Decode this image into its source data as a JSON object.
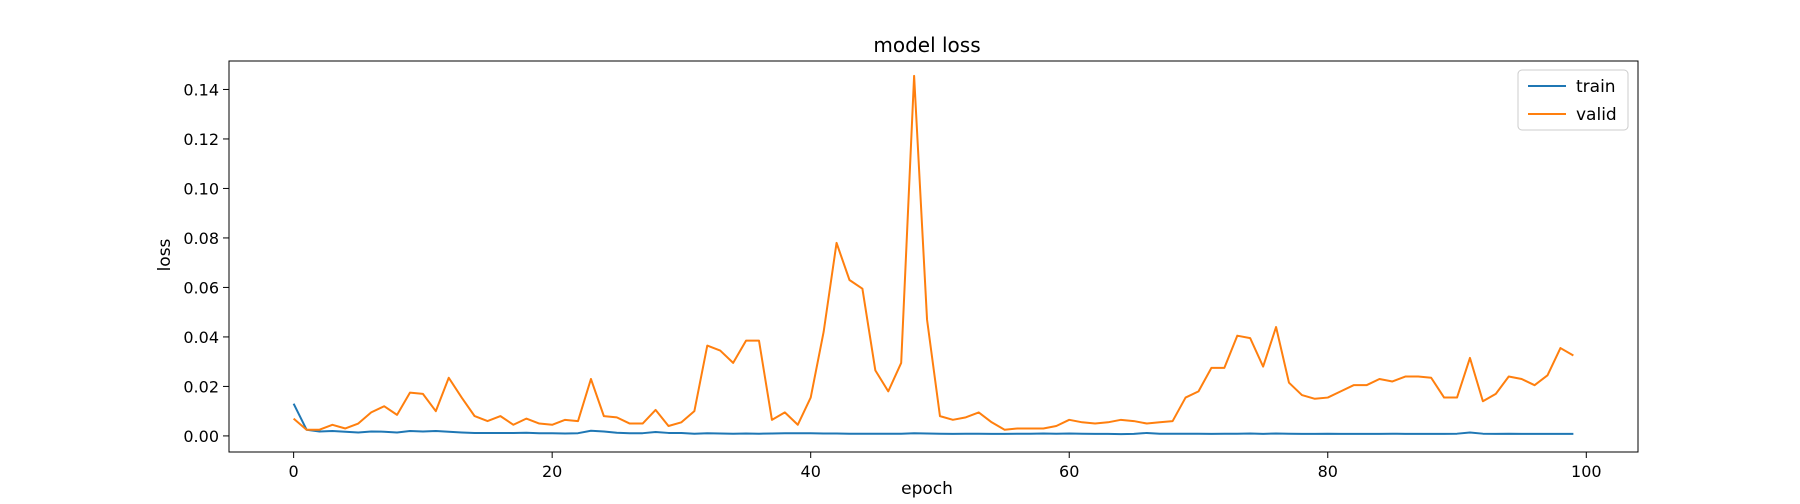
{
  "chart_data": {
    "type": "line",
    "title": "model loss",
    "xlabel": "epoch",
    "ylabel": "loss",
    "xlim": [
      -5,
      104
    ],
    "ylim": [
      -0.0065,
      0.1515
    ],
    "xticks": [
      0,
      20,
      40,
      60,
      80,
      100
    ],
    "xtick_labels": [
      "0",
      "20",
      "40",
      "60",
      "80",
      "100"
    ],
    "yticks": [
      0.0,
      0.02,
      0.04,
      0.06,
      0.08,
      0.1,
      0.12,
      0.14
    ],
    "ytick_labels": [
      "0.00",
      "0.02",
      "0.04",
      "0.06",
      "0.08",
      "0.10",
      "0.12",
      "0.14"
    ],
    "grid": false,
    "legend_position": "top-right",
    "x": [
      0,
      1,
      2,
      3,
      4,
      5,
      6,
      7,
      8,
      9,
      10,
      11,
      12,
      13,
      14,
      15,
      16,
      17,
      18,
      19,
      20,
      21,
      22,
      23,
      24,
      25,
      26,
      27,
      28,
      29,
      30,
      31,
      32,
      33,
      34,
      35,
      36,
      37,
      38,
      39,
      40,
      41,
      42,
      43,
      44,
      45,
      46,
      47,
      48,
      49,
      50,
      51,
      52,
      53,
      54,
      55,
      56,
      57,
      58,
      59,
      60,
      61,
      62,
      63,
      64,
      65,
      66,
      67,
      68,
      69,
      70,
      71,
      72,
      73,
      74,
      75,
      76,
      77,
      78,
      79,
      80,
      81,
      82,
      83,
      84,
      85,
      86,
      87,
      88,
      89,
      90,
      91,
      92,
      93,
      94,
      95,
      96,
      97,
      98,
      99
    ],
    "series": [
      {
        "name": "train",
        "color": "#1f77b4",
        "values": [
          0.013,
          0.0025,
          0.0018,
          0.002,
          0.0017,
          0.0014,
          0.0018,
          0.0017,
          0.0014,
          0.002,
          0.0018,
          0.002,
          0.0017,
          0.0014,
          0.0012,
          0.0012,
          0.0012,
          0.0012,
          0.0013,
          0.0011,
          0.0011,
          0.001,
          0.0011,
          0.0021,
          0.0018,
          0.0013,
          0.0011,
          0.0011,
          0.0016,
          0.0012,
          0.0012,
          0.0009,
          0.0011,
          0.001,
          0.0009,
          0.001,
          0.0009,
          0.001,
          0.0011,
          0.0011,
          0.0011,
          0.001,
          0.001,
          0.0009,
          0.0009,
          0.0009,
          0.0009,
          0.0009,
          0.0011,
          0.001,
          0.0009,
          0.0008,
          0.0009,
          0.0009,
          0.0008,
          0.0008,
          0.0009,
          0.0009,
          0.001,
          0.0009,
          0.001,
          0.0009,
          0.0008,
          0.0008,
          0.0007,
          0.0008,
          0.0012,
          0.0009,
          0.0009,
          0.0009,
          0.0009,
          0.0008,
          0.0009,
          0.0009,
          0.001,
          0.0008,
          0.001,
          0.0009,
          0.0008,
          0.0008,
          0.0009,
          0.0008,
          0.0008,
          0.0008,
          0.0008,
          0.0009,
          0.0008,
          0.0008,
          0.0008,
          0.0008,
          0.0009,
          0.0014,
          0.0009,
          0.0008,
          0.0009,
          0.0008,
          0.0008,
          0.0008,
          0.0008,
          0.0008
        ]
      },
      {
        "name": "valid",
        "color": "#ff7f0e",
        "values": [
          0.007,
          0.0025,
          0.0025,
          0.0045,
          0.003,
          0.005,
          0.0095,
          0.012,
          0.0085,
          0.0175,
          0.017,
          0.01,
          0.0235,
          0.0155,
          0.008,
          0.006,
          0.008,
          0.0045,
          0.007,
          0.005,
          0.0045,
          0.0065,
          0.006,
          0.023,
          0.008,
          0.0075,
          0.005,
          0.005,
          0.0105,
          0.004,
          0.0055,
          0.01,
          0.0365,
          0.0345,
          0.0295,
          0.0385,
          0.0385,
          0.0065,
          0.0095,
          0.0045,
          0.0155,
          0.042,
          0.078,
          0.063,
          0.0595,
          0.0265,
          0.018,
          0.0295,
          0.1455,
          0.047,
          0.008,
          0.0065,
          0.0075,
          0.0095,
          0.0055,
          0.0025,
          0.003,
          0.003,
          0.003,
          0.004,
          0.0065,
          0.0055,
          0.005,
          0.0055,
          0.0065,
          0.006,
          0.005,
          0.0055,
          0.006,
          0.0155,
          0.018,
          0.0275,
          0.0275,
          0.0405,
          0.0395,
          0.028,
          0.044,
          0.0215,
          0.0165,
          0.015,
          0.0155,
          0.018,
          0.0205,
          0.0205,
          0.023,
          0.022,
          0.024,
          0.024,
          0.0235,
          0.0155,
          0.0155,
          0.0315,
          0.014,
          0.017,
          0.024,
          0.023,
          0.0205,
          0.0245,
          0.0355,
          0.0325
        ]
      }
    ]
  }
}
